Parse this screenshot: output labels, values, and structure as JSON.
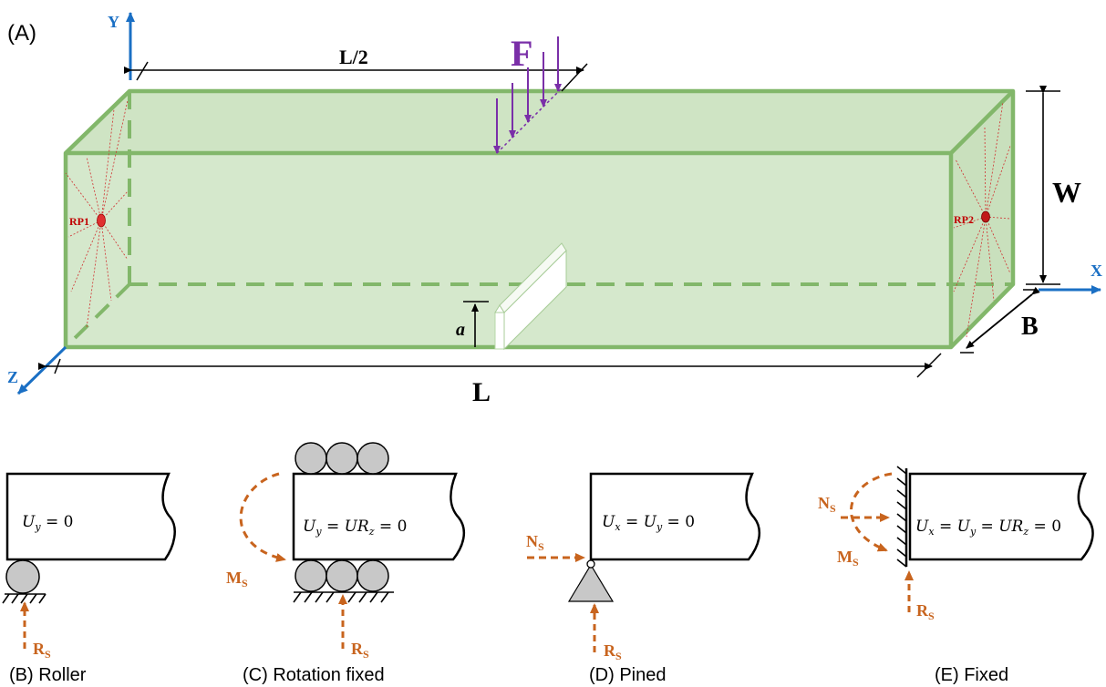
{
  "panel_a": {
    "label": "(A)",
    "axis_y": "Y",
    "axis_x": "X",
    "axis_z": "Z",
    "half_length": "L/2",
    "force": "F",
    "width": "W",
    "thickness": "B",
    "length": "L",
    "crack": "a",
    "rp1": "RP1",
    "rp2": "RP2"
  },
  "panels": {
    "roller": {
      "caption": "(B) Roller",
      "eq_main": "U",
      "eq_sub": "y",
      "eq_rest": " = 0",
      "reaction_main": "R",
      "reaction_sub": "S"
    },
    "rotation_fixed": {
      "caption": "(C) Rotation fixed",
      "eq_u": "U",
      "eq_u_sub": "y",
      "eq_mid": " = UR",
      "eq_r_sub": "z",
      "eq_end": " = 0",
      "moment_main": "M",
      "moment_sub": "S",
      "reaction_main": "R",
      "reaction_sub": "S"
    },
    "pined": {
      "caption": "(D) Pined",
      "eq_u1": "U",
      "eq_u1_sub": "x",
      "eq_mid": " = U",
      "eq_u2_sub": "y",
      "eq_end": " = 0",
      "normal_main": "N",
      "normal_sub": "S",
      "reaction_main": "R",
      "reaction_sub": "S"
    },
    "fixed": {
      "caption": "(E) Fixed",
      "eq_u1": "U",
      "eq_u1_sub": "x",
      "eq_mid1": " = U",
      "eq_u2_sub": "y",
      "eq_mid2": " = UR",
      "eq_r_sub": "z",
      "eq_end": " = 0",
      "normal_main": "N",
      "normal_sub": "S",
      "moment_main": "M",
      "moment_sub": "S",
      "reaction_main": "R",
      "reaction_sub": "S"
    }
  },
  "colors": {
    "beam_fill": "#d5e8cc",
    "beam_edge": "#82b76a",
    "axis": "#1a6fc4",
    "force": "#7a2fa8",
    "reaction": "#c8641e",
    "rp": "#c00000",
    "support_gray": "#c8c8c8"
  }
}
